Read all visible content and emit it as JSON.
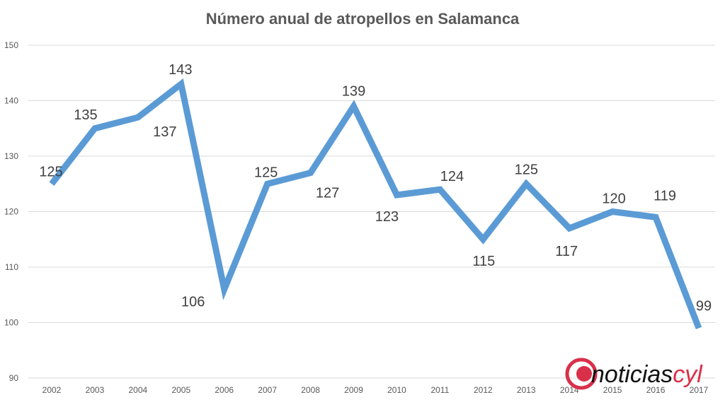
{
  "chart_data": {
    "type": "line",
    "title": "Número anual de atropellos en Salamanca",
    "xlabel": "",
    "ylabel": "",
    "categories": [
      "2002",
      "2003",
      "2004",
      "2005",
      "2006",
      "2007",
      "2008",
      "2009",
      "2010",
      "2011",
      "2012",
      "2013",
      "2014",
      "2015",
      "2016",
      "2017"
    ],
    "series": [
      {
        "values": [
          125,
          135,
          137,
          143,
          106,
          125,
          127,
          139,
          123,
          124,
          115,
          125,
          117,
          120,
          119,
          99
        ],
        "color": "#5b9bd5"
      }
    ],
    "ylim": [
      90,
      150
    ],
    "yticks": [
      90,
      100,
      110,
      120,
      130,
      140,
      150
    ],
    "grid": true,
    "data_labels": true,
    "legend": "none"
  },
  "logo": {
    "text_main": "noticias",
    "text_accent": "cyl",
    "accent_color": "#d9304a"
  }
}
